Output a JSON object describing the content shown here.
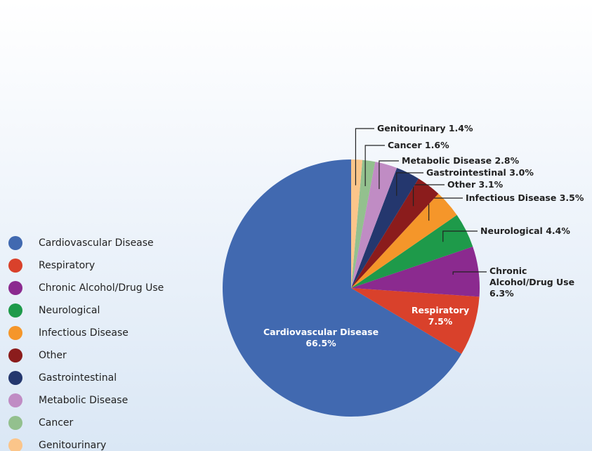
{
  "chart_data": {
    "type": "pie",
    "categories": [
      "Cardiovascular Disease",
      "Respiratory",
      "Chronic Alcohol/Drug Use",
      "Neurological",
      "Infectious Disease",
      "Other",
      "Gastrointestinal",
      "Metabolic Disease",
      "Cancer",
      "Genitourinary"
    ],
    "values": [
      66.5,
      7.5,
      6.3,
      4.4,
      3.5,
      3.1,
      3.0,
      2.8,
      1.6,
      1.4
    ],
    "value_labels": [
      "66.5%",
      "7.5%",
      "6.3%",
      "4.4%",
      "3.5%",
      "3.1%",
      "3.0%",
      "2.8%",
      "1.6%",
      "1.4%"
    ],
    "colors": [
      "#4169b0",
      "#d9412b",
      "#8b2a8f",
      "#1e9a4a",
      "#f5962a",
      "#8b1c1c",
      "#24376e",
      "#c08cc4",
      "#93c08e",
      "#fbc58a"
    ],
    "direction": "counterclockwise",
    "legend": "left"
  }
}
